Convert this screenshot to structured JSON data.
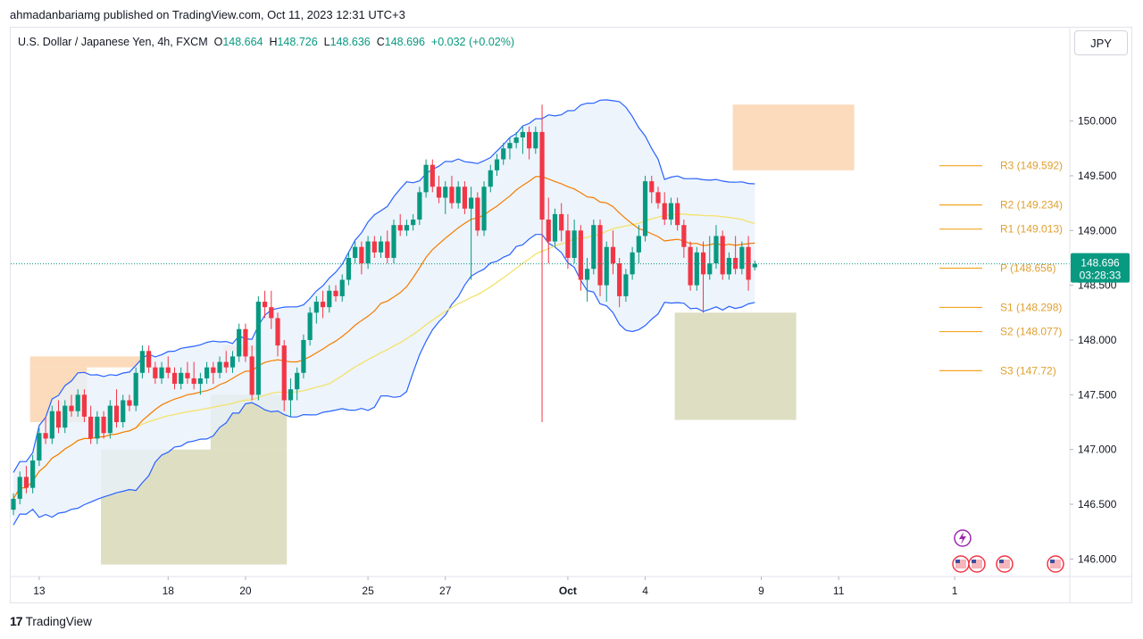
{
  "header": {
    "published_by": "ahmadanbariamg published on TradingView.com, Oct 11, 2023 12:31 UTC+3"
  },
  "legend": {
    "symbol": "U.S. Dollar / Japanese Yen, 4h, FXCM",
    "open_label": "O",
    "open": "148.664",
    "high_label": "H",
    "high": "148.726",
    "low_label": "L",
    "low": "148.636",
    "close_label": "C",
    "close": "148.696",
    "change": "+0.032 (+0.02%)"
  },
  "currency_button": "JPY",
  "price_tag": {
    "price": "148.696",
    "countdown": "03:28:33"
  },
  "footer": {
    "brand": "TradingView"
  },
  "colors": {
    "up": "#089981",
    "down": "#f23645",
    "bands": "#2962ff",
    "band_fill": "#e8f1fb",
    "basis": "#f57c00",
    "slow_ma": "#f3e26a",
    "pivot": "#f5a623",
    "pivot_text": "#e0a030",
    "demand_zone": "#d8d8b8",
    "supply_zone": "#fad5b0",
    "grid": "#ffffff"
  },
  "chart_data": {
    "type": "candlestick",
    "symbol": "USDJPY",
    "interval": "4h",
    "ylim": [
      145.84,
      150.6
    ],
    "y_ticks": [
      "146.000",
      "146.500",
      "147.000",
      "147.500",
      "148.000",
      "148.500",
      "149.000",
      "149.500",
      "150.000"
    ],
    "x_ticks": [
      {
        "label": "13",
        "bar": 4
      },
      {
        "label": "18",
        "bar": 24
      },
      {
        "label": "20",
        "bar": 36
      },
      {
        "label": "25",
        "bar": 55
      },
      {
        "label": "27",
        "bar": 67
      },
      {
        "label": "Oct",
        "bar": 86
      },
      {
        "label": "4",
        "bar": 98
      },
      {
        "label": "9",
        "bar": 116
      },
      {
        "label": "11",
        "bar": 128
      },
      {
        "label": "1",
        "bar": 146
      }
    ],
    "pivots": [
      {
        "label": "R3",
        "value": 149.592
      },
      {
        "label": "R2",
        "value": 149.234
      },
      {
        "label": "R1",
        "value": 149.013
      },
      {
        "label": "P",
        "value": 148.656
      },
      {
        "label": "S1",
        "value": 148.298
      },
      {
        "label": "S2",
        "value": 148.077
      },
      {
        "label": "S3",
        "value": 147.72
      }
    ],
    "zones": [
      {
        "kind": "supply",
        "bar_from": 3,
        "bar_to": 21,
        "y_top": 147.85,
        "y_bottom": 147.75
      },
      {
        "kind": "supply",
        "bar_from": 3,
        "bar_to": 11,
        "y_top": 147.75,
        "y_bottom": 147.25
      },
      {
        "kind": "supply",
        "bar_from": 33,
        "bar_to": 38,
        "y_top": 147.95,
        "y_bottom": 147.9
      },
      {
        "kind": "demand",
        "bar_from": 14,
        "bar_to": 42,
        "y_top": 147.0,
        "y_bottom": 145.95
      },
      {
        "kind": "demand",
        "bar_from": 31,
        "bar_to": 42,
        "y_top": 147.5,
        "y_bottom": 147.0
      },
      {
        "kind": "demand",
        "bar_from": 103,
        "bar_to": 121,
        "y_top": 148.25,
        "y_bottom": 147.27
      },
      {
        "kind": "supply",
        "bar_from": 112,
        "bar_to": 130,
        "y_top": 150.15,
        "y_bottom": 149.55
      }
    ],
    "candles": [
      [
        146.45,
        146.6,
        146.4,
        146.55
      ],
      [
        146.55,
        146.8,
        146.5,
        146.75
      ],
      [
        146.75,
        146.85,
        146.6,
        146.65
      ],
      [
        146.65,
        146.95,
        146.6,
        146.9
      ],
      [
        146.9,
        147.2,
        146.85,
        147.15
      ],
      [
        147.15,
        147.3,
        147.05,
        147.1
      ],
      [
        147.1,
        147.4,
        147.05,
        147.35
      ],
      [
        147.35,
        147.45,
        147.15,
        147.2
      ],
      [
        147.2,
        147.45,
        147.15,
        147.4
      ],
      [
        147.4,
        147.5,
        147.3,
        147.35
      ],
      [
        147.35,
        147.55,
        147.3,
        147.5
      ],
      [
        147.5,
        147.55,
        147.25,
        147.3
      ],
      [
        147.3,
        147.4,
        147.05,
        147.1
      ],
      [
        147.1,
        147.35,
        147.05,
        147.3
      ],
      [
        147.3,
        147.35,
        147.1,
        147.15
      ],
      [
        147.15,
        147.45,
        147.1,
        147.4
      ],
      [
        147.4,
        147.55,
        147.2,
        147.25
      ],
      [
        147.25,
        147.5,
        147.2,
        147.45
      ],
      [
        147.45,
        147.5,
        147.35,
        147.4
      ],
      [
        147.4,
        147.75,
        147.35,
        147.7
      ],
      [
        147.7,
        147.95,
        147.65,
        147.9
      ],
      [
        147.9,
        147.95,
        147.7,
        147.75
      ],
      [
        147.75,
        147.8,
        147.6,
        147.65
      ],
      [
        147.65,
        147.8,
        147.6,
        147.75
      ],
      [
        147.75,
        147.85,
        147.65,
        147.7
      ],
      [
        147.7,
        147.75,
        147.55,
        147.6
      ],
      [
        147.6,
        147.75,
        147.55,
        147.7
      ],
      [
        147.7,
        147.8,
        147.6,
        147.65
      ],
      [
        147.65,
        147.8,
        147.55,
        147.6
      ],
      [
        147.6,
        147.7,
        147.5,
        147.65
      ],
      [
        147.65,
        147.8,
        147.6,
        147.75
      ],
      [
        147.75,
        147.8,
        147.6,
        147.7
      ],
      [
        147.7,
        147.85,
        147.65,
        147.8
      ],
      [
        147.8,
        147.9,
        147.7,
        147.75
      ],
      [
        147.75,
        147.9,
        147.7,
        147.85
      ],
      [
        147.85,
        148.15,
        147.8,
        148.1
      ],
      [
        148.1,
        148.15,
        147.8,
        147.85
      ],
      [
        147.85,
        147.95,
        147.45,
        147.5
      ],
      [
        147.5,
        148.4,
        147.45,
        148.35
      ],
      [
        148.35,
        148.45,
        148.2,
        148.3
      ],
      [
        148.3,
        148.45,
        148.1,
        148.2
      ],
      [
        148.2,
        148.25,
        147.85,
        147.95
      ],
      [
        147.95,
        148.0,
        147.35,
        147.45
      ],
      [
        147.45,
        147.65,
        147.3,
        147.55
      ],
      [
        147.55,
        147.75,
        147.45,
        147.7
      ],
      [
        147.7,
        148.05,
        147.65,
        148.0
      ],
      [
        148.0,
        148.3,
        147.95,
        148.25
      ],
      [
        148.25,
        148.4,
        148.15,
        148.35
      ],
      [
        148.35,
        148.45,
        148.2,
        148.3
      ],
      [
        148.3,
        148.5,
        148.25,
        148.45
      ],
      [
        148.45,
        148.5,
        148.35,
        148.4
      ],
      [
        148.4,
        148.6,
        148.35,
        148.55
      ],
      [
        148.55,
        148.8,
        148.5,
        148.75
      ],
      [
        148.75,
        148.9,
        148.7,
        148.85
      ],
      [
        148.85,
        148.9,
        148.6,
        148.7
      ],
      [
        148.7,
        148.95,
        148.65,
        148.9
      ],
      [
        148.9,
        148.95,
        148.75,
        148.8
      ],
      [
        148.8,
        148.95,
        148.75,
        148.9
      ],
      [
        148.9,
        149.0,
        148.7,
        148.75
      ],
      [
        148.75,
        149.1,
        148.7,
        149.05
      ],
      [
        149.05,
        149.15,
        148.95,
        149.0
      ],
      [
        149.0,
        149.1,
        148.95,
        149.05
      ],
      [
        149.05,
        149.15,
        149.0,
        149.1
      ],
      [
        149.1,
        149.4,
        149.05,
        149.35
      ],
      [
        149.35,
        149.65,
        149.3,
        149.6
      ],
      [
        149.6,
        149.65,
        149.35,
        149.4
      ],
      [
        149.4,
        149.5,
        149.25,
        149.3
      ],
      [
        149.3,
        149.45,
        149.15,
        149.4
      ],
      [
        149.4,
        149.5,
        149.2,
        149.25
      ],
      [
        149.25,
        149.45,
        149.2,
        149.4
      ],
      [
        149.4,
        149.45,
        149.15,
        149.2
      ],
      [
        149.2,
        149.4,
        148.55,
        149.3
      ],
      [
        149.3,
        149.35,
        148.95,
        149.0
      ],
      [
        149.0,
        149.45,
        148.95,
        149.4
      ],
      [
        149.4,
        149.6,
        149.35,
        149.55
      ],
      [
        149.55,
        149.7,
        149.5,
        149.65
      ],
      [
        149.65,
        149.8,
        149.6,
        149.75
      ],
      [
        149.75,
        149.85,
        149.65,
        149.8
      ],
      [
        149.8,
        149.9,
        149.75,
        149.85
      ],
      [
        149.85,
        149.95,
        149.7,
        149.9
      ],
      [
        149.9,
        149.95,
        149.65,
        149.75
      ],
      [
        149.75,
        149.95,
        149.7,
        149.9
      ],
      [
        149.9,
        150.15,
        147.25,
        149.1
      ],
      [
        149.1,
        149.3,
        148.7,
        148.9
      ],
      [
        148.9,
        149.2,
        148.85,
        149.15
      ],
      [
        149.15,
        149.25,
        148.9,
        149.0
      ],
      [
        149.0,
        149.15,
        148.65,
        148.75
      ],
      [
        148.75,
        149.1,
        148.7,
        149.0
      ],
      [
        149.0,
        149.05,
        148.45,
        148.55
      ],
      [
        148.55,
        148.75,
        148.35,
        148.65
      ],
      [
        148.65,
        149.1,
        148.6,
        149.05
      ],
      [
        149.05,
        149.1,
        148.4,
        148.5
      ],
      [
        148.5,
        148.9,
        148.35,
        148.85
      ],
      [
        148.85,
        149.0,
        148.6,
        148.7
      ],
      [
        148.7,
        148.75,
        148.3,
        148.4
      ],
      [
        148.4,
        148.65,
        148.35,
        148.6
      ],
      [
        148.6,
        148.85,
        148.55,
        148.8
      ],
      [
        148.8,
        149.05,
        148.7,
        148.95
      ],
      [
        148.95,
        149.5,
        148.9,
        149.45
      ],
      [
        149.45,
        149.5,
        149.25,
        149.35
      ],
      [
        149.35,
        149.4,
        149.2,
        149.25
      ],
      [
        149.25,
        149.35,
        149.05,
        149.1
      ],
      [
        149.1,
        149.3,
        149.05,
        149.25
      ],
      [
        149.25,
        149.3,
        149.0,
        149.05
      ],
      [
        149.05,
        149.1,
        148.75,
        148.85
      ],
      [
        148.85,
        148.9,
        148.45,
        148.5
      ],
      [
        148.5,
        148.85,
        148.45,
        148.8
      ],
      [
        148.8,
        148.9,
        148.25,
        148.6
      ],
      [
        148.6,
        148.95,
        148.55,
        148.7
      ],
      [
        148.7,
        149.05,
        148.65,
        148.95
      ],
      [
        148.95,
        149.0,
        148.55,
        148.6
      ],
      [
        148.6,
        148.8,
        148.55,
        148.75
      ],
      [
        148.75,
        148.95,
        148.6,
        148.65
      ],
      [
        148.65,
        148.9,
        148.6,
        148.85
      ],
      [
        148.85,
        148.95,
        148.45,
        148.55
      ],
      [
        148.664,
        148.726,
        148.636,
        148.696
      ]
    ]
  }
}
